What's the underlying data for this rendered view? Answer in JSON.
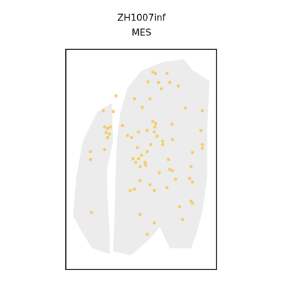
{
  "chart_data": {
    "type": "scatter",
    "title": "ZH1007inf",
    "subtitle": "MES",
    "xlim": [
      93,
      306
    ],
    "ylim": [
      382,
      70
    ],
    "series": [
      {
        "name": "MES",
        "color": "#f5cd6a",
        "x": [
          164,
          146,
          160,
          148,
          152,
          156,
          150,
          155,
          152,
          148,
          128,
          128,
          173,
          180,
          186,
          196,
          216,
          220,
          236,
          209,
          224,
          240,
          252,
          228,
          212,
          190,
          201,
          262,
          286,
          216,
          220,
          219,
          208,
          218,
          222,
          243,
          284,
          244,
          230,
          230,
          213,
          194,
          208,
          200,
          188,
          196,
          192,
          205,
          198,
          206,
          238,
          272,
          286,
          286,
          240,
          244,
          225,
          270,
          198,
          212,
          248,
          236,
          218,
          190,
          184,
          268,
          272,
          270,
          272,
          254,
          129,
          198,
          258,
          218,
          208
        ],
        "values": [
          136,
          157,
          158,
          180,
          182,
          180,
          188,
          190,
          195,
          212,
          215,
          226,
          178,
          192,
          195,
          187,
          102,
          104,
          104,
          116,
          117,
          117,
          122,
          126,
          140,
          140,
          152,
          153,
          157,
          172,
          175,
          180,
          185,
          187,
          193,
          176,
          185,
          198,
          200,
          205,
          205,
          209,
          215,
          220,
          225,
          225,
          230,
          230,
          236,
          234,
          226,
          216,
          205,
          210,
          240,
          242,
          245,
          236,
          256,
          262,
          254,
          266,
          270,
          268,
          270,
          253,
          258,
          285,
          288,
          293,
          301,
          304,
          311,
          316,
          332
        ]
      }
    ]
  }
}
